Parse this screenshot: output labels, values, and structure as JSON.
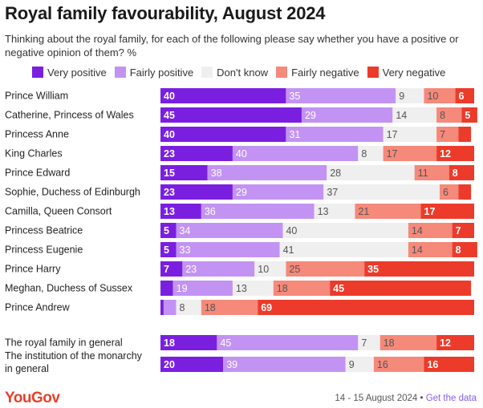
{
  "header": {
    "title": "Royal family favourability, August 2024",
    "subtitle": "Thinking about the royal family, for each of the following please say whether you have a positive or negative opinion of them? %"
  },
  "footer": {
    "logo_text": "YouGov",
    "date_text": "14 - 15 August 2024",
    "separator": " • ",
    "link_text": "Get the data"
  },
  "colors": {
    "very_positive": "#7a1fe0",
    "fairly_positive": "#c393f3",
    "dont_know": "#efefef",
    "fairly_negative": "#f5897a",
    "very_negative": "#ec3b2a"
  },
  "chart_data": {
    "type": "bar",
    "orientation": "horizontal",
    "stacked": true,
    "title": "Royal family favourability, August 2024",
    "unit": "%",
    "xlim": [
      0,
      100
    ],
    "grid": false,
    "legend_position": "top",
    "categories": [
      "Prince William",
      "Catherine, Princess of Wales",
      "Princess Anne",
      "King Charles",
      "Prince Edward",
      "Sophie, Duchess of Edinburgh",
      "Camilla, Queen Consort",
      "Princess Beatrice",
      "Princess Eugenie",
      "Prince Harry",
      "Meghan, Duchess of Sussex",
      "Prince Andrew",
      "The royal family in general",
      "The institution of the monarchy in general"
    ],
    "series": [
      {
        "name": "Very positive",
        "color": "#7a1fe0",
        "values": [
          40,
          45,
          40,
          23,
          15,
          23,
          13,
          5,
          5,
          7,
          4,
          1,
          18,
          20
        ]
      },
      {
        "name": "Fairly positive",
        "color": "#c393f3",
        "values": [
          35,
          29,
          31,
          40,
          38,
          29,
          36,
          34,
          33,
          23,
          19,
          4,
          45,
          39
        ]
      },
      {
        "name": "Don't know",
        "color": "#efefef",
        "values": [
          9,
          14,
          17,
          8,
          28,
          37,
          13,
          40,
          41,
          10,
          13,
          8,
          7,
          9
        ]
      },
      {
        "name": "Fairly negative",
        "color": "#f5897a",
        "values": [
          10,
          8,
          7,
          17,
          11,
          6,
          21,
          14,
          14,
          25,
          18,
          18,
          18,
          16
        ]
      },
      {
        "name": "Very negative",
        "color": "#ec3b2a",
        "values": [
          6,
          5,
          4,
          12,
          8,
          4,
          17,
          7,
          8,
          35,
          45,
          69,
          12,
          16
        ]
      }
    ],
    "data_labels": [
      [
        "40",
        "35",
        "9",
        "10",
        "6"
      ],
      [
        "45",
        "29",
        "14",
        "8",
        "5"
      ],
      [
        "40",
        "31",
        "17",
        "7",
        ""
      ],
      [
        "23",
        "40",
        "8",
        "17",
        "12"
      ],
      [
        "15",
        "38",
        "28",
        "11",
        "8"
      ],
      [
        "23",
        "29",
        "37",
        "6",
        ""
      ],
      [
        "13",
        "36",
        "13",
        "21",
        "17"
      ],
      [
        "5",
        "34",
        "40",
        "14",
        "7"
      ],
      [
        "5",
        "33",
        "41",
        "14",
        "8"
      ],
      [
        "7",
        "23",
        "10",
        "25",
        "35"
      ],
      [
        "",
        "19",
        "13",
        "18",
        "45"
      ],
      [
        "",
        "",
        "8",
        "18",
        "69"
      ],
      [
        "18",
        "45",
        "7",
        "18",
        "12"
      ],
      [
        "20",
        "39",
        "9",
        "16",
        "16"
      ]
    ]
  }
}
